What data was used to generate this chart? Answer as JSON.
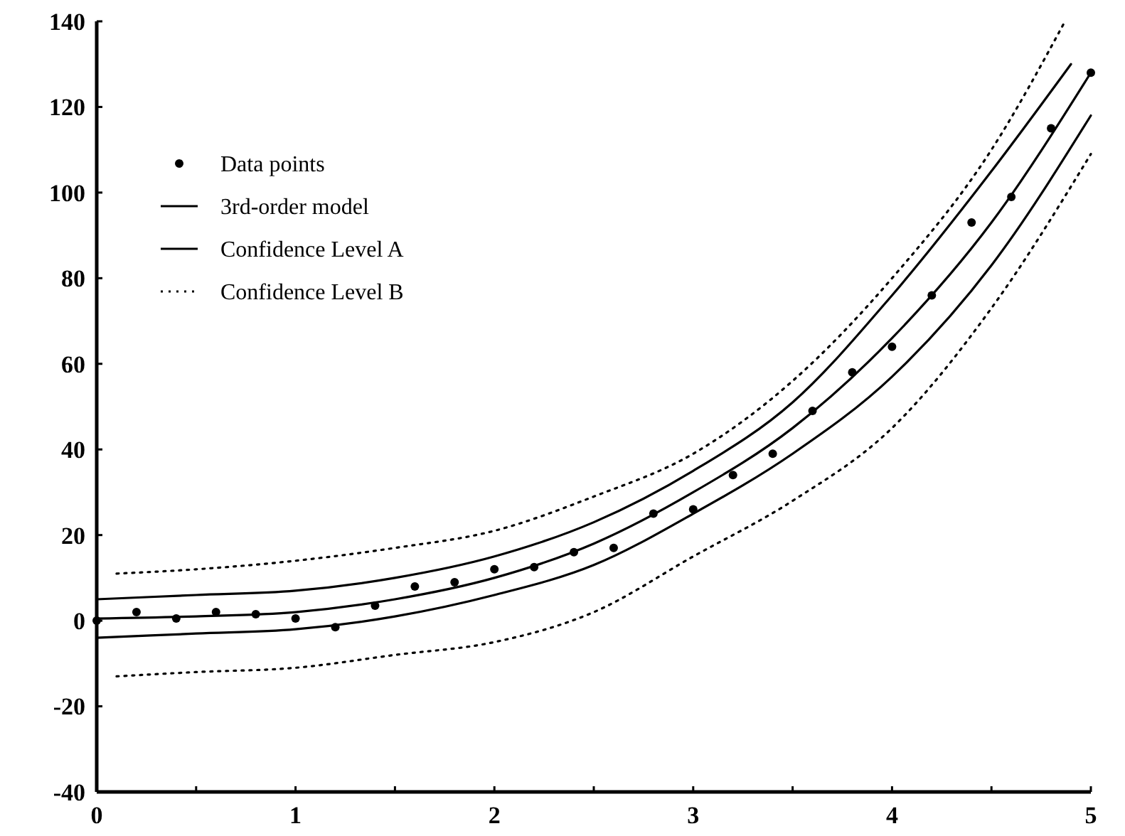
{
  "chart_data": {
    "type": "line",
    "xlim": [
      0,
      5
    ],
    "ylim": [
      -40,
      140
    ],
    "xticks": [
      0,
      {
        "value": 0.5,
        "label": null
      },
      1,
      {
        "value": 1.5,
        "label": null
      },
      2,
      {
        "value": 2.5,
        "label": null
      },
      3,
      {
        "value": 3.5,
        "label": null
      },
      4,
      {
        "value": 4.5,
        "label": null
      },
      5
    ],
    "yticks": [
      -40,
      -20,
      0,
      20,
      40,
      60,
      80,
      100,
      120,
      140
    ],
    "grid": false,
    "legend": "top left",
    "series": [
      {
        "name": "Data points",
        "type": "scatter",
        "marker": "circle",
        "color": "#000000",
        "x": [
          0,
          0.2,
          0.4,
          0.6,
          0.8,
          1,
          1.2,
          1.4,
          1.6,
          1.8,
          2,
          2.2,
          2.4,
          2.6,
          2.8,
          3,
          3.2,
          3.4,
          3.6,
          3.8,
          4,
          4.2,
          4.4,
          4.6,
          4.8,
          5
        ],
        "values": [
          0,
          2,
          0.5,
          2,
          1.5,
          0.5,
          -1.5,
          3.5,
          8,
          9,
          12,
          12.5,
          16,
          17,
          25,
          26,
          34,
          39,
          49,
          58,
          64,
          76,
          93,
          99,
          115,
          128
        ]
      },
      {
        "name": "3rd-order model",
        "line_style": "solid",
        "color": "#000000",
        "x": [
          0,
          0.5,
          1,
          1.5,
          2,
          2.5,
          3,
          3.5,
          4,
          4.5,
          5
        ],
        "values": [
          0.5,
          1,
          2,
          5,
          10,
          18,
          30,
          45,
          66,
          93,
          128
        ]
      },
      {
        "name": "Confidence Level A",
        "line_style": "solid",
        "color": "#000000",
        "x": [
          0,
          0.5,
          1,
          1.5,
          2,
          2.5,
          3,
          3.5,
          4,
          4.5,
          4.9
        ],
        "values": [
          5,
          6,
          7,
          10,
          15,
          23,
          35,
          51,
          76,
          105,
          130
        ]
      },
      {
        "line_style": "solid",
        "color": "#000000",
        "x": [
          0,
          0.5,
          1,
          1.5,
          2,
          2.5,
          3,
          3.5,
          4,
          4.5,
          5
        ],
        "values": [
          -4,
          -3,
          -2,
          1,
          6,
          13,
          25,
          39,
          57,
          83,
          118
        ]
      },
      {
        "name": "Confidence Level B",
        "line_style": "dotted",
        "color": "#000000",
        "x": [
          0.1,
          0.5,
          1,
          1.5,
          2,
          2.5,
          3,
          3.5,
          4,
          4.5,
          4.87
        ],
        "values": [
          11,
          12,
          14,
          17,
          21,
          29,
          39,
          56,
          80,
          110,
          140
        ]
      },
      {
        "line_style": "dotted",
        "color": "#000000",
        "x": [
          0.1,
          0.5,
          1,
          1.5,
          2,
          2.5,
          3,
          3.5,
          4,
          4.5,
          5
        ],
        "values": [
          -13,
          -12,
          -11,
          -8,
          -5,
          2,
          15,
          28,
          45,
          73,
          109
        ]
      }
    ]
  }
}
